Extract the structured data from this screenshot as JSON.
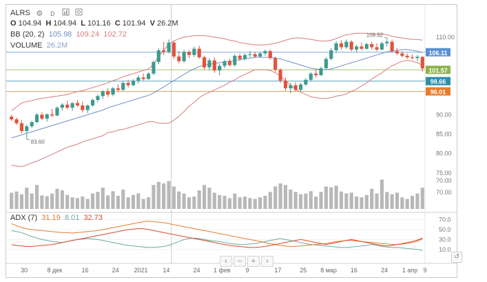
{
  "symbol": "ALRS",
  "ohlc": {
    "o_label": "O",
    "o": "104.94",
    "h_label": "H",
    "h": "104.94",
    "l_label": "L",
    "l": "101.16",
    "c_label": "C",
    "c": "101.94",
    "v_label": "V",
    "v": "26.2M"
  },
  "bb": {
    "label": "BB (20, 2)",
    "middle": "105.98",
    "upper": "109.24",
    "lower": "102.72"
  },
  "volume": {
    "label": "VOLUME",
    "value": "26.2M"
  },
  "adx": {
    "label": "ADX (7)",
    "adx": "31.19",
    "di_minus": "8.01",
    "di_plus": "32.73"
  },
  "toolbar_icons": [
    "gear-icon",
    "interval-d",
    "bar-chart-icon",
    "copy-icon"
  ],
  "interval": "D",
  "navigation": {
    "prev": "‹",
    "minus": "−",
    "plus": "+",
    "next": "›",
    "reset": "↺"
  },
  "colors": {
    "up": "#3d9a8e",
    "down": "#e0533d",
    "bb_upper": "#d77b7b",
    "bb_mid": "#6f8fc2",
    "bb_lower": "#d77b7b",
    "volume": "#b8b8b8",
    "adx": "#e87c2c",
    "di_minus": "#6aa8a0",
    "di_plus": "#d9492d"
  },
  "chart_data": {
    "type": "candlestick",
    "x_ticks": [
      "30",
      "8 дек",
      "16",
      "24",
      "2021",
      "14",
      "24",
      "1 фев",
      "9",
      "17",
      "25",
      "8 мар",
      "16",
      "24",
      "1 апр",
      "9"
    ],
    "price_ticks": [
      70.0,
      75.0,
      80.0,
      85.0,
      90.0,
      110.0
    ],
    "price_range": [
      65,
      113
    ],
    "volume_ticks": [
      70.0
    ],
    "adx_ticks": [
      10.0,
      30.0,
      50.0,
      70.0
    ],
    "adx_range": [
      0,
      75
    ],
    "annotations": {
      "low": "83.60",
      "high": "109.92"
    },
    "price_markers": [
      {
        "value": 106.11,
        "label": "106.11",
        "color": "#5b8fd1"
      },
      {
        "value": 101.57,
        "label": "101.57",
        "color": "#8cb34a"
      },
      {
        "value": 98.66,
        "label": "98.66",
        "color": "#2f8fa8"
      },
      {
        "value": 96.01,
        "label": "96.01",
        "color": "#e87c2c"
      }
    ],
    "candles": [
      {
        "o": 89.5,
        "h": 90.0,
        "l": 88.4,
        "c": 88.8,
        "v": 0.42
      },
      {
        "o": 88.8,
        "h": 89.3,
        "l": 87.4,
        "c": 87.8,
        "v": 0.45
      },
      {
        "o": 87.8,
        "h": 88.6,
        "l": 85.2,
        "c": 85.8,
        "v": 0.38
      },
      {
        "o": 85.8,
        "h": 87.5,
        "l": 83.6,
        "c": 87.0,
        "v": 0.55
      },
      {
        "o": 87.0,
        "h": 88.4,
        "l": 86.6,
        "c": 88.1,
        "v": 0.4
      },
      {
        "o": 88.1,
        "h": 90.4,
        "l": 87.8,
        "c": 90.0,
        "v": 0.62
      },
      {
        "o": 90.0,
        "h": 90.6,
        "l": 88.6,
        "c": 89.0,
        "v": 0.35
      },
      {
        "o": 89.0,
        "h": 90.3,
        "l": 88.2,
        "c": 90.1,
        "v": 0.33
      },
      {
        "o": 90.1,
        "h": 91.5,
        "l": 89.4,
        "c": 89.8,
        "v": 0.4
      },
      {
        "o": 89.8,
        "h": 92.2,
        "l": 89.6,
        "c": 91.8,
        "v": 0.52
      },
      {
        "o": 91.8,
        "h": 93.0,
        "l": 91.0,
        "c": 92.6,
        "v": 0.48
      },
      {
        "o": 92.6,
        "h": 93.6,
        "l": 91.4,
        "c": 91.8,
        "v": 0.36
      },
      {
        "o": 91.8,
        "h": 93.2,
        "l": 91.0,
        "c": 93.0,
        "v": 0.3
      },
      {
        "o": 93.0,
        "h": 93.8,
        "l": 92.0,
        "c": 92.4,
        "v": 0.28
      },
      {
        "o": 92.4,
        "h": 93.4,
        "l": 90.6,
        "c": 91.2,
        "v": 0.32
      },
      {
        "o": 91.2,
        "h": 92.6,
        "l": 90.4,
        "c": 92.4,
        "v": 0.26
      },
      {
        "o": 92.4,
        "h": 94.2,
        "l": 92.0,
        "c": 93.8,
        "v": 0.4
      },
      {
        "o": 93.8,
        "h": 95.2,
        "l": 93.2,
        "c": 94.8,
        "v": 0.44
      },
      {
        "o": 94.8,
        "h": 96.4,
        "l": 94.0,
        "c": 96.0,
        "v": 0.55
      },
      {
        "o": 96.0,
        "h": 96.8,
        "l": 94.6,
        "c": 95.2,
        "v": 0.35
      },
      {
        "o": 95.2,
        "h": 97.2,
        "l": 94.8,
        "c": 96.8,
        "v": 0.46
      },
      {
        "o": 96.8,
        "h": 97.8,
        "l": 95.8,
        "c": 96.4,
        "v": 0.34
      },
      {
        "o": 96.4,
        "h": 98.6,
        "l": 96.2,
        "c": 98.2,
        "v": 0.5
      },
      {
        "o": 98.2,
        "h": 99.0,
        "l": 97.0,
        "c": 97.6,
        "v": 0.3
      },
      {
        "o": 97.6,
        "h": 99.2,
        "l": 97.4,
        "c": 98.8,
        "v": 0.36
      },
      {
        "o": 98.8,
        "h": 100.2,
        "l": 98.0,
        "c": 99.6,
        "v": 0.4
      },
      {
        "o": 99.6,
        "h": 100.6,
        "l": 98.8,
        "c": 99.2,
        "v": 0.26
      },
      {
        "o": 99.2,
        "h": 101.0,
        "l": 99.0,
        "c": 100.6,
        "v": 0.3
      },
      {
        "o": 100.6,
        "h": 104.0,
        "l": 100.2,
        "c": 103.6,
        "v": 0.62
      },
      {
        "o": 103.6,
        "h": 107.2,
        "l": 103.0,
        "c": 106.6,
        "v": 0.7
      },
      {
        "o": 106.6,
        "h": 108.8,
        "l": 105.4,
        "c": 106.2,
        "v": 0.66
      },
      {
        "o": 106.2,
        "h": 109.4,
        "l": 105.8,
        "c": 108.6,
        "v": 0.72
      },
      {
        "o": 108.6,
        "h": 109.0,
        "l": 104.4,
        "c": 105.0,
        "v": 0.58
      },
      {
        "o": 105.0,
        "h": 106.4,
        "l": 103.2,
        "c": 103.8,
        "v": 0.45
      },
      {
        "o": 103.8,
        "h": 106.8,
        "l": 103.4,
        "c": 106.2,
        "v": 0.4
      },
      {
        "o": 106.2,
        "h": 106.6,
        "l": 104.6,
        "c": 105.4,
        "v": 0.3
      },
      {
        "o": 105.4,
        "h": 107.6,
        "l": 104.8,
        "c": 107.0,
        "v": 0.32
      },
      {
        "o": 107.0,
        "h": 107.8,
        "l": 104.4,
        "c": 104.8,
        "v": 0.48
      },
      {
        "o": 104.8,
        "h": 105.2,
        "l": 101.6,
        "c": 102.2,
        "v": 0.62
      },
      {
        "o": 102.2,
        "h": 104.6,
        "l": 101.4,
        "c": 104.0,
        "v": 0.55
      },
      {
        "o": 104.0,
        "h": 104.8,
        "l": 100.8,
        "c": 101.4,
        "v": 0.42
      },
      {
        "o": 101.4,
        "h": 103.0,
        "l": 100.2,
        "c": 102.6,
        "v": 0.36
      },
      {
        "o": 102.6,
        "h": 104.2,
        "l": 102.0,
        "c": 103.8,
        "v": 0.34
      },
      {
        "o": 103.8,
        "h": 104.4,
        "l": 102.4,
        "c": 102.8,
        "v": 0.28
      },
      {
        "o": 102.8,
        "h": 105.6,
        "l": 102.4,
        "c": 105.2,
        "v": 0.4
      },
      {
        "o": 105.2,
        "h": 105.8,
        "l": 103.8,
        "c": 104.4,
        "v": 0.3
      },
      {
        "o": 104.4,
        "h": 105.8,
        "l": 104.0,
        "c": 105.4,
        "v": 0.32
      },
      {
        "o": 105.4,
        "h": 106.4,
        "l": 104.8,
        "c": 105.6,
        "v": 0.28
      },
      {
        "o": 105.6,
        "h": 106.2,
        "l": 104.6,
        "c": 105.0,
        "v": 0.26
      },
      {
        "o": 105.0,
        "h": 106.2,
        "l": 104.8,
        "c": 105.8,
        "v": 0.3
      },
      {
        "o": 105.8,
        "h": 106.8,
        "l": 105.2,
        "c": 106.4,
        "v": 0.34
      },
      {
        "o": 106.4,
        "h": 106.8,
        "l": 104.2,
        "c": 104.6,
        "v": 0.44
      },
      {
        "o": 104.6,
        "h": 105.0,
        "l": 101.0,
        "c": 101.6,
        "v": 0.58
      },
      {
        "o": 101.6,
        "h": 102.0,
        "l": 98.2,
        "c": 98.8,
        "v": 0.66
      },
      {
        "o": 98.8,
        "h": 99.6,
        "l": 96.2,
        "c": 96.8,
        "v": 0.62
      },
      {
        "o": 96.8,
        "h": 98.2,
        "l": 95.6,
        "c": 97.6,
        "v": 0.5
      },
      {
        "o": 97.6,
        "h": 98.4,
        "l": 96.0,
        "c": 96.4,
        "v": 0.44
      },
      {
        "o": 96.4,
        "h": 98.2,
        "l": 96.0,
        "c": 97.8,
        "v": 0.38
      },
      {
        "o": 97.8,
        "h": 99.4,
        "l": 97.4,
        "c": 99.0,
        "v": 0.4
      },
      {
        "o": 99.0,
        "h": 101.0,
        "l": 98.6,
        "c": 100.6,
        "v": 0.46
      },
      {
        "o": 100.6,
        "h": 101.6,
        "l": 99.6,
        "c": 100.2,
        "v": 0.32
      },
      {
        "o": 100.2,
        "h": 102.4,
        "l": 100.0,
        "c": 102.0,
        "v": 0.44
      },
      {
        "o": 102.0,
        "h": 104.8,
        "l": 101.6,
        "c": 104.4,
        "v": 0.58
      },
      {
        "o": 104.4,
        "h": 107.2,
        "l": 104.0,
        "c": 106.6,
        "v": 0.56
      },
      {
        "o": 106.6,
        "h": 109.0,
        "l": 106.0,
        "c": 108.4,
        "v": 0.6
      },
      {
        "o": 108.4,
        "h": 109.2,
        "l": 106.8,
        "c": 107.4,
        "v": 0.45
      },
      {
        "o": 107.4,
        "h": 109.4,
        "l": 107.0,
        "c": 108.8,
        "v": 0.4
      },
      {
        "o": 108.8,
        "h": 109.2,
        "l": 106.4,
        "c": 106.8,
        "v": 0.42
      },
      {
        "o": 106.8,
        "h": 108.0,
        "l": 106.0,
        "c": 107.6,
        "v": 0.32
      },
      {
        "o": 107.6,
        "h": 108.6,
        "l": 106.6,
        "c": 107.0,
        "v": 0.3
      },
      {
        "o": 107.0,
        "h": 108.6,
        "l": 106.8,
        "c": 108.2,
        "v": 0.36
      },
      {
        "o": 108.2,
        "h": 108.8,
        "l": 106.8,
        "c": 107.4,
        "v": 0.52
      },
      {
        "o": 107.4,
        "h": 108.4,
        "l": 106.4,
        "c": 106.8,
        "v": 0.4
      },
      {
        "o": 106.8,
        "h": 108.8,
        "l": 106.6,
        "c": 108.4,
        "v": 0.76
      },
      {
        "o": 108.4,
        "h": 109.92,
        "l": 107.6,
        "c": 108.8,
        "v": 0.44
      },
      {
        "o": 108.8,
        "h": 109.4,
        "l": 106.0,
        "c": 106.4,
        "v": 0.38
      },
      {
        "o": 106.4,
        "h": 107.2,
        "l": 105.4,
        "c": 105.8,
        "v": 0.42
      },
      {
        "o": 105.8,
        "h": 106.4,
        "l": 104.8,
        "c": 105.2,
        "v": 0.3
      },
      {
        "o": 105.2,
        "h": 105.8,
        "l": 104.4,
        "c": 104.8,
        "v": 0.26
      },
      {
        "o": 104.8,
        "h": 105.6,
        "l": 104.2,
        "c": 104.6,
        "v": 0.34
      },
      {
        "o": 104.6,
        "h": 105.4,
        "l": 103.8,
        "c": 104.94,
        "v": 0.4
      },
      {
        "o": 104.94,
        "h": 104.94,
        "l": 101.16,
        "c": 101.94,
        "v": 0.55
      }
    ],
    "bb_upper": [
      91.0,
      92.0,
      93.0,
      93.4,
      93.6,
      94.0,
      94.2,
      94.4,
      94.6,
      94.8,
      95.0,
      95.2,
      95.6,
      96.0,
      96.2,
      96.6,
      97.0,
      97.4,
      97.8,
      98.2,
      98.8,
      99.2,
      99.8,
      100.2,
      100.6,
      101.0,
      101.4,
      101.8,
      103.0,
      105.0,
      106.6,
      108.2,
      109.0,
      109.6,
      110.0,
      110.2,
      110.4,
      110.4,
      110.4,
      110.2,
      110.0,
      109.8,
      109.6,
      109.2,
      109.0,
      108.6,
      108.4,
      108.2,
      108.0,
      108.0,
      108.0,
      108.2,
      108.4,
      108.8,
      109.2,
      109.6,
      109.8,
      109.8,
      109.6,
      109.4,
      109.2,
      109.0,
      109.0,
      109.2,
      109.6,
      110.2,
      110.6,
      110.8,
      111.0,
      111.0,
      111.0,
      110.8,
      110.8,
      110.8,
      110.6,
      110.2,
      110.0,
      109.8,
      109.6,
      109.4,
      109.4,
      109.24
    ],
    "bb_mid": [
      84.0,
      84.4,
      84.8,
      85.2,
      85.6,
      86.0,
      86.4,
      86.8,
      87.2,
      87.6,
      88.0,
      88.4,
      88.8,
      89.2,
      89.6,
      90.0,
      90.4,
      90.8,
      91.2,
      91.8,
      92.2,
      92.6,
      93.0,
      93.4,
      93.8,
      94.2,
      94.6,
      95.0,
      95.6,
      96.4,
      97.2,
      98.0,
      98.8,
      99.6,
      100.4,
      101.2,
      101.8,
      102.4,
      102.8,
      103.0,
      103.2,
      103.4,
      103.6,
      103.8,
      104.0,
      104.2,
      104.4,
      104.6,
      104.8,
      104.8,
      104.8,
      104.8,
      104.6,
      104.4,
      104.0,
      103.6,
      103.2,
      102.8,
      102.4,
      102.0,
      101.8,
      101.6,
      101.6,
      101.8,
      102.2,
      102.6,
      103.0,
      103.4,
      103.8,
      104.2,
      104.6,
      105.0,
      105.4,
      105.8,
      106.2,
      106.4,
      106.6,
      106.8,
      106.8,
      106.6,
      106.4,
      105.98
    ],
    "bb_lower": [
      77.0,
      76.8,
      76.6,
      77.0,
      77.6,
      78.0,
      78.6,
      79.2,
      79.8,
      80.4,
      81.0,
      81.6,
      82.0,
      82.4,
      83.0,
      83.4,
      83.8,
      84.2,
      84.6,
      85.4,
      85.6,
      86.0,
      86.2,
      86.6,
      87.0,
      87.4,
      87.8,
      88.2,
      88.2,
      87.8,
      87.8,
      87.8,
      88.6,
      89.6,
      90.8,
      92.2,
      93.2,
      94.4,
      95.2,
      95.8,
      96.4,
      97.0,
      97.6,
      98.4,
      99.0,
      99.8,
      100.4,
      101.0,
      101.6,
      101.6,
      101.6,
      101.4,
      100.8,
      100.0,
      98.8,
      97.6,
      96.6,
      95.8,
      95.2,
      94.6,
      94.4,
      94.2,
      94.2,
      94.4,
      94.8,
      95.0,
      95.4,
      96.0,
      96.6,
      97.4,
      98.2,
      99.2,
      100.0,
      100.8,
      101.8,
      102.6,
      103.2,
      103.8,
      104.0,
      103.8,
      103.4,
      102.72
    ],
    "adx_line": [
      62,
      58,
      54,
      52,
      50,
      49,
      48,
      47,
      46,
      45,
      44,
      44,
      43,
      44,
      45,
      46,
      47,
      48,
      50,
      52,
      54,
      56,
      58,
      60,
      62,
      64,
      66,
      67,
      66,
      65,
      64,
      62,
      60,
      58,
      56,
      54,
      52,
      50,
      48,
      46,
      44,
      42,
      40,
      38,
      36,
      34,
      32,
      30,
      28,
      26,
      24,
      22,
      20,
      18,
      17,
      16,
      16,
      17,
      18,
      19,
      20,
      21,
      22,
      24,
      26,
      27,
      28,
      28,
      27,
      26,
      25,
      24,
      23,
      22,
      21,
      20,
      20,
      21,
      22,
      24,
      27,
      31.19
    ],
    "di_minus": [
      48,
      46,
      44,
      40,
      36,
      33,
      30,
      28,
      26,
      25,
      24,
      26,
      28,
      30,
      31,
      32,
      31,
      30,
      28,
      26,
      24,
      22,
      20,
      18,
      17,
      16,
      15,
      14,
      14,
      15,
      16,
      18,
      22,
      26,
      30,
      32,
      33,
      32,
      30,
      28,
      27,
      26,
      24,
      22,
      21,
      20,
      20,
      21,
      22,
      24,
      26,
      28,
      30,
      32,
      30,
      28,
      26,
      24,
      22,
      20,
      19,
      18,
      17,
      16,
      15,
      14,
      14,
      15,
      16,
      17,
      18,
      20,
      18,
      16,
      15,
      14,
      14,
      13,
      12,
      11,
      10,
      8.01
    ],
    "di_plus": [
      20,
      18,
      17,
      16,
      16,
      17,
      18,
      19,
      20,
      22,
      24,
      26,
      28,
      30,
      32,
      34,
      36,
      38,
      40,
      42,
      44,
      46,
      48,
      50,
      51,
      52,
      52,
      50,
      48,
      46,
      44,
      42,
      40,
      38,
      36,
      34,
      32,
      30,
      28,
      26,
      24,
      22,
      20,
      18,
      17,
      16,
      15,
      14,
      14,
      15,
      16,
      18,
      20,
      22,
      24,
      26,
      28,
      30,
      28,
      26,
      24,
      22,
      20,
      22,
      24,
      26,
      28,
      30,
      28,
      26,
      24,
      22,
      20,
      18,
      17,
      18,
      20,
      22,
      24,
      26,
      29,
      32.73
    ]
  }
}
